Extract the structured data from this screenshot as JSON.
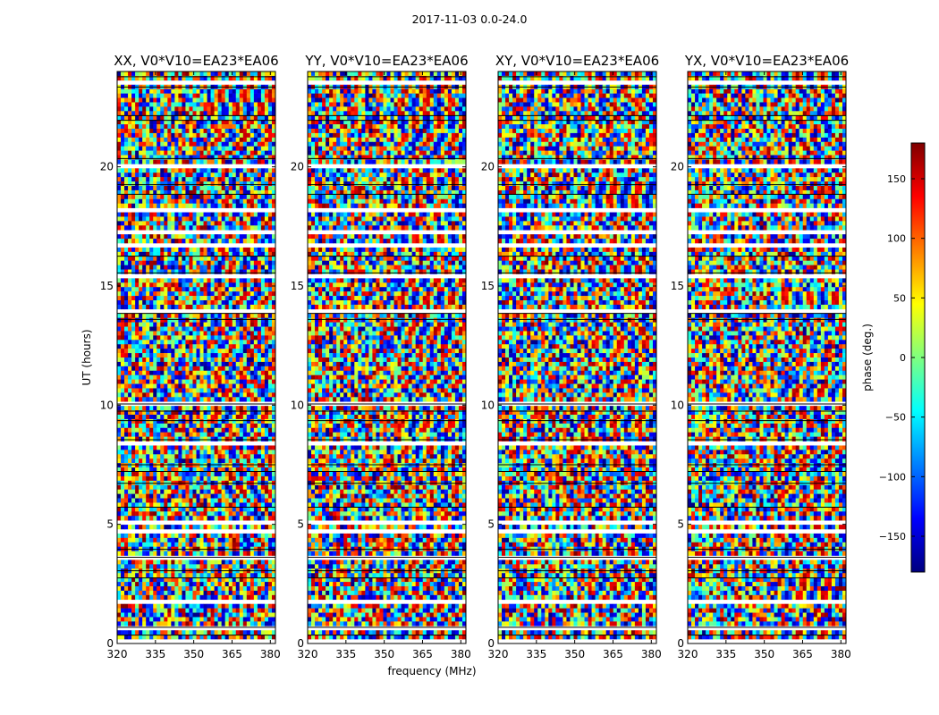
{
  "figure": {
    "suptitle": "2017-11-03 0.0-24.0",
    "shared_xlabel": "frequency (MHz)",
    "shared_ylabel": "UT (hours)"
  },
  "colorbar": {
    "label": "phase (deg.)",
    "ticks": [
      150,
      100,
      50,
      0,
      -50,
      -100,
      -150
    ],
    "tick_labels": [
      "150",
      "100",
      "50",
      "0",
      "−50",
      "−100",
      "−150"
    ],
    "range": [
      -180,
      180
    ],
    "colormap": "jet",
    "colors": [
      "#00007f",
      "#0000ff",
      "#007fff",
      "#00ffff",
      "#7fff7f",
      "#ffff00",
      "#ff7f00",
      "#ff0000",
      "#7f0000"
    ]
  },
  "chart_data": [
    {
      "type": "heatmap",
      "title": "XX, V0*V10=EA23*EA06",
      "xlabel": "",
      "ylabel": "UT (hours)",
      "xlim": [
        320,
        382
      ],
      "ylim": [
        0,
        24
      ],
      "xticks": [
        320,
        335,
        350,
        365,
        380
      ],
      "xtick_labels": [
        "320",
        "335",
        "350",
        "365",
        "380"
      ],
      "yticks": [
        0,
        5,
        10,
        15,
        20
      ],
      "ytick_labels": [
        "0",
        "5",
        "10",
        "15",
        "20"
      ],
      "z_quantity": "phase (deg.)",
      "z_range": [
        -180,
        180
      ]
    },
    {
      "type": "heatmap",
      "title": "YY, V0*V10=EA23*EA06",
      "xlabel": "frequency (MHz)",
      "ylabel": "",
      "xlim": [
        320,
        382
      ],
      "ylim": [
        0,
        24
      ],
      "xticks": [
        320,
        335,
        350,
        365,
        380
      ],
      "xtick_labels": [
        "320",
        "335",
        "350",
        "365",
        "380"
      ],
      "yticks": [
        0,
        5,
        10,
        15,
        20
      ],
      "ytick_labels": [
        "0",
        "5",
        "10",
        "15",
        "20"
      ],
      "z_quantity": "phase (deg.)",
      "z_range": [
        -180,
        180
      ]
    },
    {
      "type": "heatmap",
      "title": "XY, V0*V10=EA23*EA06",
      "xlabel": "",
      "ylabel": "",
      "xlim": [
        320,
        382
      ],
      "ylim": [
        0,
        24
      ],
      "xticks": [
        320,
        335,
        350,
        365,
        380
      ],
      "xtick_labels": [
        "320",
        "335",
        "350",
        "365",
        "380"
      ],
      "yticks": [
        0,
        5,
        10,
        15,
        20
      ],
      "ytick_labels": [
        "0",
        "5",
        "10",
        "15",
        "20"
      ],
      "z_quantity": "phase (deg.)",
      "z_range": [
        -180,
        180
      ]
    },
    {
      "type": "heatmap",
      "title": "YX, V0*V10=EA23*EA06",
      "xlabel": "",
      "ylabel": "",
      "xlim": [
        320,
        382
      ],
      "ylim": [
        0,
        24
      ],
      "xticks": [
        320,
        335,
        350,
        365,
        380
      ],
      "xtick_labels": [
        "320",
        "335",
        "350",
        "365",
        "380"
      ],
      "yticks": [
        0,
        5,
        10,
        15,
        20
      ],
      "ytick_labels": [
        "0",
        "5",
        "10",
        "15",
        "20"
      ],
      "z_quantity": "phase (deg.)",
      "z_range": [
        -180,
        180
      ]
    }
  ],
  "data_gaps_ut_hours": [
    [
      0.35,
      0.55
    ],
    [
      0.68,
      0.78
    ],
    [
      2.75,
      2.85
    ],
    [
      3.05,
      3.12
    ],
    [
      3.62,
      3.72
    ],
    [
      3.95,
      4.05
    ],
    [
      5.72,
      5.82
    ],
    [
      6.72,
      6.82
    ],
    [
      7.22,
      7.3
    ],
    [
      7.5,
      7.6
    ],
    [
      8.55,
      8.65
    ],
    [
      9.35,
      9.45
    ],
    [
      9.75,
      9.85
    ],
    [
      10.05,
      10.12
    ],
    [
      13.6,
      13.7
    ],
    [
      13.85,
      13.95
    ],
    [
      15.55,
      15.62
    ],
    [
      16.25,
      16.33
    ],
    [
      18.85,
      18.95
    ],
    [
      19.25,
      19.35
    ],
    [
      20.35,
      20.45
    ],
    [
      21.95,
      22.05
    ],
    [
      22.15,
      22.25
    ],
    [
      23.35,
      23.42
    ],
    [
      23.78,
      23.92
    ]
  ]
}
